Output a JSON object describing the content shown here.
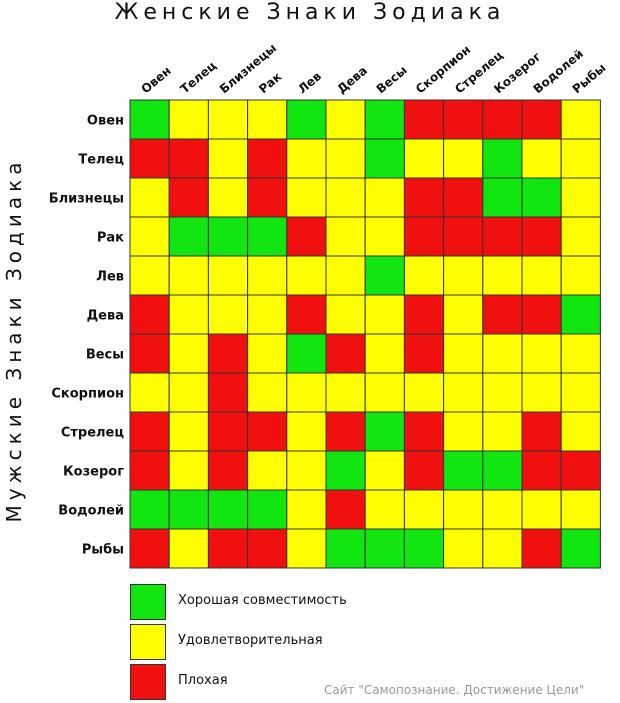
{
  "title_top": "Женские Знаки Зодиака",
  "title_side": "Мужские Знаки Зодиака",
  "credit": "Сайт \"Самопознание. Достижение Цели\"",
  "colors": {
    "G": "#11e611",
    "Y": "#ffff00",
    "R": "#f01010",
    "grid": "#333333"
  },
  "legend": [
    {
      "key": "G",
      "label": "Хорошая совместимость"
    },
    {
      "key": "Y",
      "label": "Удовлетворительная"
    },
    {
      "key": "R",
      "label": "Плохая"
    }
  ],
  "chart_data": {
    "type": "heatmap",
    "title": "Женские Знаки Зодиака",
    "ylabel": "Мужские Знаки Зодиака",
    "columns": [
      "Овен",
      "Телец",
      "Близнецы",
      "Рак",
      "Лев",
      "Дева",
      "Весы",
      "Скорпион",
      "Стрелец",
      "Козерог",
      "Водолей",
      "Рыбы"
    ],
    "rows": [
      "Овен",
      "Телец",
      "Близнецы",
      "Рак",
      "Лев",
      "Дева",
      "Весы",
      "Скорпион",
      "Стрелец",
      "Козерог",
      "Водолей",
      "Рыбы"
    ],
    "values": [
      [
        "G",
        "Y",
        "Y",
        "Y",
        "G",
        "Y",
        "G",
        "R",
        "R",
        "R",
        "R",
        "Y"
      ],
      [
        "R",
        "R",
        "Y",
        "R",
        "Y",
        "Y",
        "G",
        "Y",
        "Y",
        "G",
        "Y",
        "Y"
      ],
      [
        "Y",
        "R",
        "Y",
        "R",
        "Y",
        "Y",
        "Y",
        "R",
        "R",
        "G",
        "G",
        "Y"
      ],
      [
        "Y",
        "G",
        "G",
        "G",
        "R",
        "Y",
        "Y",
        "R",
        "R",
        "R",
        "R",
        "Y"
      ],
      [
        "Y",
        "Y",
        "Y",
        "Y",
        "Y",
        "Y",
        "G",
        "Y",
        "Y",
        "Y",
        "Y",
        "Y"
      ],
      [
        "R",
        "Y",
        "Y",
        "Y",
        "R",
        "Y",
        "Y",
        "R",
        "Y",
        "R",
        "R",
        "G"
      ],
      [
        "R",
        "Y",
        "R",
        "Y",
        "G",
        "R",
        "Y",
        "R",
        "Y",
        "Y",
        "Y",
        "Y"
      ],
      [
        "Y",
        "Y",
        "R",
        "Y",
        "Y",
        "Y",
        "Y",
        "Y",
        "Y",
        "Y",
        "Y",
        "Y"
      ],
      [
        "R",
        "Y",
        "R",
        "R",
        "Y",
        "R",
        "G",
        "R",
        "Y",
        "Y",
        "R",
        "Y"
      ],
      [
        "R",
        "Y",
        "R",
        "Y",
        "Y",
        "G",
        "Y",
        "R",
        "G",
        "G",
        "R",
        "R"
      ],
      [
        "G",
        "G",
        "G",
        "G",
        "Y",
        "R",
        "Y",
        "Y",
        "Y",
        "Y",
        "Y",
        "Y"
      ],
      [
        "R",
        "Y",
        "R",
        "R",
        "Y",
        "G",
        "G",
        "G",
        "Y",
        "Y",
        "R",
        "G"
      ]
    ],
    "legend_position": "bottom"
  }
}
